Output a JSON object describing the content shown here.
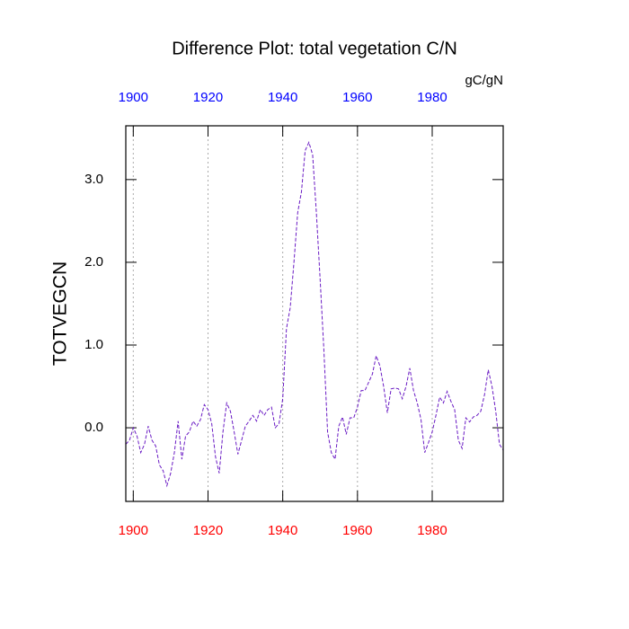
{
  "chart_data": {
    "type": "line",
    "title": "Difference Plot: total vegetation C/N",
    "ylabel": "TOTVEGCN",
    "units": "gC/gN",
    "x": [
      1898,
      1899,
      1900,
      1901,
      1902,
      1903,
      1904,
      1905,
      1906,
      1907,
      1908,
      1909,
      1910,
      1911,
      1912,
      1913,
      1914,
      1915,
      1916,
      1917,
      1918,
      1919,
      1920,
      1921,
      1922,
      1923,
      1924,
      1925,
      1926,
      1927,
      1928,
      1929,
      1930,
      1931,
      1932,
      1933,
      1934,
      1935,
      1936,
      1937,
      1938,
      1939,
      1940,
      1941,
      1942,
      1943,
      1944,
      1945,
      1946,
      1947,
      1948,
      1949,
      1950,
      1951,
      1952,
      1953,
      1954,
      1955,
      1956,
      1957,
      1958,
      1959,
      1960,
      1961,
      1962,
      1963,
      1964,
      1965,
      1966,
      1967,
      1968,
      1969,
      1970,
      1971,
      1972,
      1973,
      1974,
      1975,
      1976,
      1977,
      1978,
      1979,
      1980,
      1981,
      1982,
      1983,
      1984,
      1985,
      1986,
      1987,
      1988,
      1989,
      1990,
      1991,
      1992,
      1993,
      1994,
      1995,
      1996,
      1997,
      1998,
      1999
    ],
    "series": [
      {
        "color": "#6a1bc4",
        "dashed": true,
        "values": [
          -0.2,
          -0.15,
          0.0,
          -0.1,
          -0.3,
          -0.2,
          0.02,
          -0.15,
          -0.22,
          -0.45,
          -0.52,
          -0.7,
          -0.55,
          -0.3,
          0.08,
          -0.38,
          -0.1,
          -0.05,
          0.08,
          0.02,
          0.1,
          0.28,
          0.22,
          0.05,
          -0.35,
          -0.55,
          -0.05,
          0.3,
          0.2,
          -0.05,
          -0.32,
          -0.15,
          0.02,
          0.08,
          0.15,
          0.08,
          0.22,
          0.15,
          0.22,
          0.25,
          0.0,
          0.05,
          0.35,
          1.2,
          1.45,
          2.0,
          2.6,
          2.85,
          3.35,
          3.45,
          3.3,
          2.6,
          1.8,
          0.95,
          -0.05,
          -0.3,
          -0.38,
          0.02,
          0.13,
          -0.08,
          0.12,
          0.12,
          0.25,
          0.45,
          0.45,
          0.55,
          0.65,
          0.87,
          0.75,
          0.5,
          0.18,
          0.47,
          0.48,
          0.47,
          0.35,
          0.5,
          0.72,
          0.45,
          0.3,
          0.1,
          -0.3,
          -0.18,
          -0.05,
          0.15,
          0.37,
          0.3,
          0.44,
          0.32,
          0.22,
          -0.15,
          -0.25,
          0.12,
          0.07,
          0.13,
          0.15,
          0.2,
          0.4,
          0.7,
          0.5,
          0.2,
          -0.2,
          -0.27
        ]
      }
    ],
    "xlim": [
      1898,
      1999
    ],
    "xticks": [
      1900,
      1920,
      1940,
      1960,
      1980
    ],
    "ylim": [
      -0.89,
      3.65
    ],
    "yticks": [
      {
        "value": 0,
        "label": "0.0"
      },
      {
        "value": 1,
        "label": "1.0"
      },
      {
        "value": 2,
        "label": "2.0"
      },
      {
        "value": 3,
        "label": "3.0"
      }
    ],
    "x_tick_label_colors": {
      "bottom": "#ff0000",
      "top": "#0000ff"
    },
    "grid": "x"
  }
}
